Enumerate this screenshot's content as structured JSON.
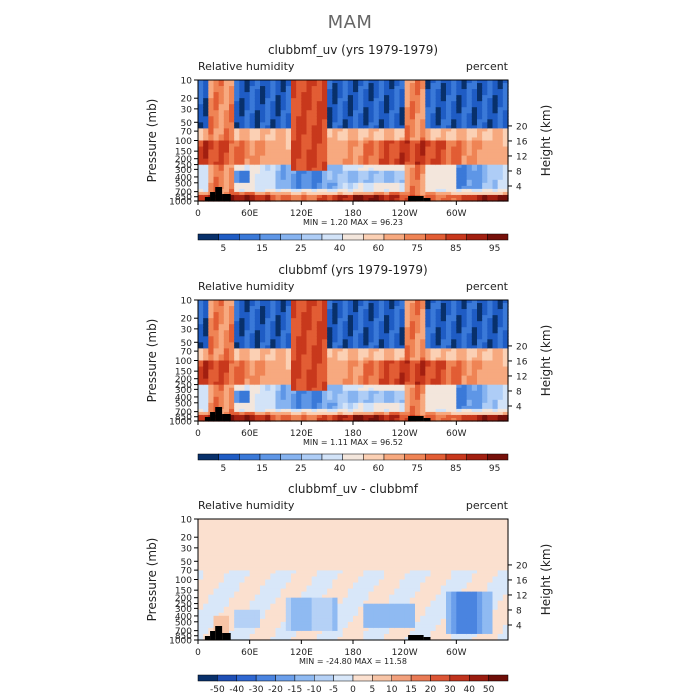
{
  "page_title": "MAM",
  "chart_data": [
    {
      "type": "heatmap",
      "title": "clubbmf_uv (yrs 1979-1979)",
      "left_label": "Relative humidity",
      "right_label": "percent",
      "ylabel": "Pressure (mb)",
      "ylabel_right": "Height (km)",
      "x_ticks": [
        "0",
        "60E",
        "120E",
        "180",
        "120W",
        "60W"
      ],
      "y_ticks": [
        "10",
        "20",
        "30",
        "50",
        "70",
        "100",
        "150",
        "200",
        "250",
        "300",
        "400",
        "500",
        "700",
        "850",
        "1000"
      ],
      "y2_ticks": [
        "20",
        "16",
        "12",
        "8",
        "4"
      ],
      "stats_text": "MIN =    1.20   MAX =   96.23",
      "colorbar_labels": [
        "5",
        "15",
        "25",
        "40",
        "60",
        "75",
        "85",
        "95"
      ],
      "colorbar_colors": [
        "#08306b",
        "#1f5cc4",
        "#3a79d8",
        "#5e96e6",
        "#86b3f0",
        "#aecdf6",
        "#d2e3f8",
        "#f3e6dc",
        "#fbd0b4",
        "#f7a97f",
        "#ef8455",
        "#e25d34",
        "#c8381c",
        "#a21f10",
        "#76100a"
      ],
      "min": 1.2,
      "max": 96.23
    },
    {
      "type": "heatmap",
      "title": "clubbmf (yrs 1979-1979)",
      "left_label": "Relative humidity",
      "right_label": "percent",
      "ylabel": "Pressure (mb)",
      "ylabel_right": "Height (km)",
      "x_ticks": [
        "0",
        "60E",
        "120E",
        "180",
        "120W",
        "60W"
      ],
      "y_ticks": [
        "10",
        "20",
        "30",
        "50",
        "70",
        "100",
        "150",
        "200",
        "250",
        "300",
        "400",
        "500",
        "700",
        "850",
        "1000"
      ],
      "y2_ticks": [
        "20",
        "16",
        "12",
        "8",
        "4"
      ],
      "stats_text": "MIN =    1.11   MAX =   96.52",
      "colorbar_labels": [
        "5",
        "15",
        "25",
        "40",
        "60",
        "75",
        "85",
        "95"
      ],
      "colorbar_colors": [
        "#08306b",
        "#1f5cc4",
        "#3a79d8",
        "#5e96e6",
        "#86b3f0",
        "#aecdf6",
        "#d2e3f8",
        "#f3e6dc",
        "#fbd0b4",
        "#f7a97f",
        "#ef8455",
        "#e25d34",
        "#c8381c",
        "#a21f10",
        "#76100a"
      ],
      "min": 1.11,
      "max": 96.52
    },
    {
      "type": "heatmap",
      "title": "clubbmf_uv - clubbmf",
      "left_label": "Relative humidity",
      "right_label": "percent",
      "ylabel": "Pressure (mb)",
      "ylabel_right": "Height (km)",
      "x_ticks": [
        "0",
        "60E",
        "120E",
        "180",
        "120W",
        "60W"
      ],
      "y_ticks": [
        "10",
        "20",
        "30",
        "50",
        "70",
        "100",
        "150",
        "200",
        "250",
        "300",
        "400",
        "500",
        "700",
        "850",
        "1000"
      ],
      "y2_ticks": [
        "20",
        "16",
        "12",
        "8",
        "4"
      ],
      "stats_text": "MIN =  -24.80   MAX =   11.58",
      "colorbar_labels": [
        "-50",
        "-40",
        "-30",
        "-20",
        "-15",
        "-10",
        "-5",
        "0",
        "5",
        "10",
        "15",
        "20",
        "30",
        "40",
        "50"
      ],
      "colorbar_colors": [
        "#08306b",
        "#1f4fb5",
        "#2f67d1",
        "#4a84e0",
        "#6b9feb",
        "#8fbaf2",
        "#b5d1f6",
        "#d8e7f9",
        "#fbe0cf",
        "#f7c4a6",
        "#f2a07c",
        "#e97a55",
        "#dc5535",
        "#c0331d",
        "#9a1c0f",
        "#6e0e08"
      ],
      "min": -24.8,
      "max": 11.58
    }
  ]
}
